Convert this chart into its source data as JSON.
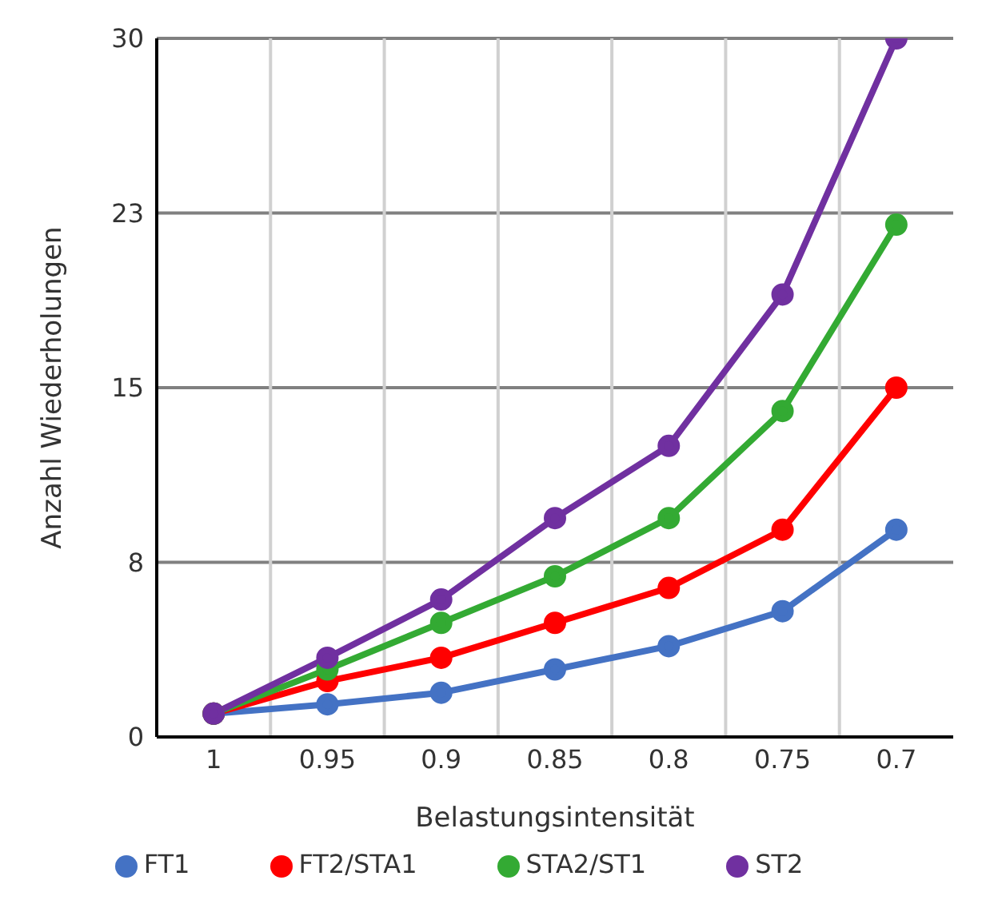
{
  "chart_data": {
    "type": "line",
    "xlabel": "Belastungsintensität",
    "ylabel": "Anzahl Wiederholungen",
    "categories": [
      "1",
      "0.95",
      "0.9",
      "0.85",
      "0.8",
      "0.75",
      "0.7"
    ],
    "ylim": [
      0,
      30
    ],
    "yticks": [
      0,
      {
        "value": 7.5,
        "label": "8"
      },
      15,
      {
        "value": 22.5,
        "label": "23"
      },
      30
    ],
    "grid": true,
    "legend": "bottom",
    "marker": "circle",
    "line_style": "solid",
    "series": [
      {
        "name": "FT1",
        "color": "#4472c4",
        "values": [
          1,
          1.4,
          1.9,
          2.9,
          3.9,
          5.4,
          8.9
        ]
      },
      {
        "name": "FT2/STA1",
        "color": "#ff0000",
        "values": [
          1,
          2.4,
          3.4,
          4.9,
          6.4,
          8.9,
          15
        ]
      },
      {
        "name": "STA2/ST1",
        "color": "#33aa33",
        "values": [
          1,
          2.9,
          4.9,
          6.9,
          9.4,
          14,
          22
        ]
      },
      {
        "name": "ST2",
        "color": "#7030a0",
        "values": [
          1,
          3.4,
          5.9,
          9.4,
          12.5,
          19,
          30
        ]
      }
    ]
  }
}
